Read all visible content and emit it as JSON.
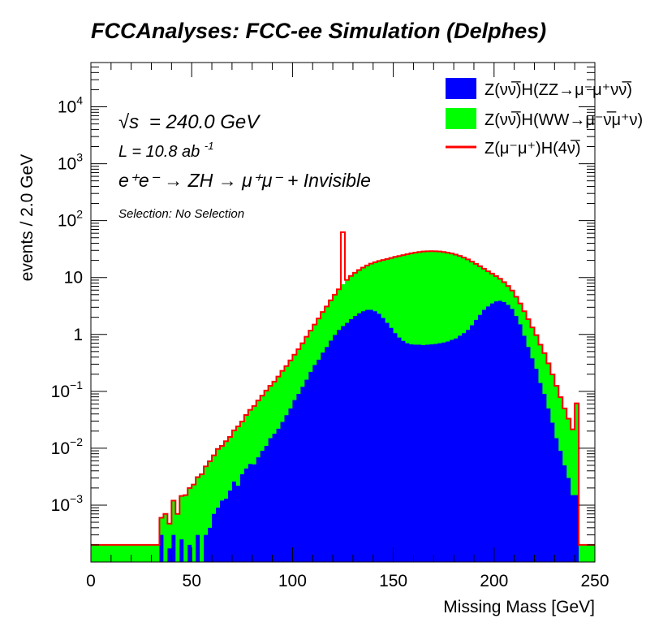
{
  "chart_data": {
    "type": "area",
    "title": "FCCAnalyses: FCC-ee Simulation (Delphes)",
    "xlabel": "Missing Mass [GeV]",
    "ylabel": "events / 2.0 GeV",
    "xlim": [
      0,
      250
    ],
    "ylim": [
      0.0001,
      60000
    ],
    "yscale": "log",
    "bin_width": 2,
    "x_ticks": [
      "0",
      "50",
      "100",
      "150",
      "200",
      "250"
    ],
    "y_ticks": [
      {
        "value": 0.001,
        "mantissa": "10",
        "exp": "−3"
      },
      {
        "value": 0.01,
        "mantissa": "10",
        "exp": "−2"
      },
      {
        "value": 0.1,
        "mantissa": "10",
        "exp": "−1"
      },
      {
        "value": 1,
        "mantissa": "1",
        "exp": ""
      },
      {
        "value": 10,
        "mantissa": "10",
        "exp": ""
      },
      {
        "value": 100,
        "mantissa": "10",
        "exp": "2"
      },
      {
        "value": 1000,
        "mantissa": "10",
        "exp": "3"
      },
      {
        "value": 10000,
        "mantissa": "10",
        "exp": "4"
      }
    ],
    "grid": false,
    "legend_position": "top-right",
    "annotations": {
      "sqrt_s_symbol": "√s",
      "sqrt_s_value": "= 240.0 GeV",
      "lumi_text": "L = 10.8 ab",
      "lumi_exp": "-1",
      "process_text": "e⁺e⁻ → ZH → μ⁺μ⁻ + Invisible",
      "selection_text": "Selection: No Selection"
    },
    "series": [
      {
        "name": "Z(νν̅)H(ZZ→μ⁻μ⁺νν̅)",
        "color": "#0000ff",
        "style": "stacked-fill",
        "points": [
          [
            30,
            0.0001
          ],
          [
            33,
            0.0001
          ],
          [
            34,
            0.0003
          ],
          [
            36,
            0.0001
          ],
          [
            40,
            0.0003
          ],
          [
            42,
            0.0001
          ],
          [
            44,
            0.00025
          ],
          [
            46,
            0.0001
          ],
          [
            48,
            0.0002
          ],
          [
            50,
            0.0001
          ],
          [
            52,
            0.0003
          ],
          [
            54,
            0.0001
          ],
          [
            56,
            0.0003
          ],
          [
            58,
            0.0004
          ],
          [
            60,
            0.0007
          ],
          [
            62,
            0.0009
          ],
          [
            64,
            0.0012
          ],
          [
            66,
            0.0013
          ],
          [
            68,
            0.0018
          ],
          [
            70,
            0.0026
          ],
          [
            72,
            0.0022
          ],
          [
            74,
            0.0035
          ],
          [
            76,
            0.0044
          ],
          [
            78,
            0.0053
          ],
          [
            80,
            0.0052
          ],
          [
            82,
            0.0069
          ],
          [
            84,
            0.009
          ],
          [
            86,
            0.011
          ],
          [
            88,
            0.015
          ],
          [
            90,
            0.018
          ],
          [
            92,
            0.022
          ],
          [
            94,
            0.029
          ],
          [
            96,
            0.038
          ],
          [
            98,
            0.05
          ],
          [
            100,
            0.07
          ],
          [
            102,
            0.09
          ],
          [
            104,
            0.12
          ],
          [
            106,
            0.16
          ],
          [
            108,
            0.22
          ],
          [
            110,
            0.29
          ],
          [
            112,
            0.36
          ],
          [
            114,
            0.48
          ],
          [
            116,
            0.6
          ],
          [
            118,
            0.78
          ],
          [
            120,
            0.98
          ],
          [
            122,
            1.2
          ],
          [
            124,
            1.4
          ],
          [
            126,
            1.6
          ],
          [
            128,
            1.85
          ],
          [
            130,
            2.1
          ],
          [
            132,
            2.35
          ],
          [
            134,
            2.55
          ],
          [
            136,
            2.7
          ],
          [
            138,
            2.7
          ],
          [
            140,
            2.55
          ],
          [
            142,
            2.3
          ],
          [
            144,
            1.95
          ],
          [
            146,
            1.6
          ],
          [
            148,
            1.3
          ],
          [
            150,
            1.05
          ],
          [
            152,
            0.88
          ],
          [
            154,
            0.77
          ],
          [
            156,
            0.7
          ],
          [
            158,
            0.67
          ],
          [
            160,
            0.66
          ],
          [
            162,
            0.66
          ],
          [
            164,
            0.65
          ],
          [
            166,
            0.66
          ],
          [
            168,
            0.67
          ],
          [
            170,
            0.68
          ],
          [
            172,
            0.7
          ],
          [
            174,
            0.72
          ],
          [
            176,
            0.75
          ],
          [
            178,
            0.8
          ],
          [
            180,
            0.85
          ],
          [
            182,
            0.95
          ],
          [
            184,
            1.05
          ],
          [
            186,
            1.2
          ],
          [
            188,
            1.45
          ],
          [
            190,
            1.8
          ],
          [
            192,
            2.2
          ],
          [
            194,
            2.7
          ],
          [
            196,
            3.1
          ],
          [
            198,
            3.5
          ],
          [
            200,
            3.8
          ],
          [
            202,
            3.9
          ],
          [
            204,
            3.7
          ],
          [
            206,
            3.3
          ],
          [
            208,
            2.8
          ],
          [
            210,
            2.1
          ],
          [
            212,
            1.5
          ],
          [
            214,
            0.95
          ],
          [
            216,
            0.6
          ],
          [
            218,
            0.38
          ],
          [
            220,
            0.25
          ],
          [
            222,
            0.14
          ],
          [
            224,
            0.09
          ],
          [
            226,
            0.05
          ],
          [
            228,
            0.028
          ],
          [
            230,
            0.015
          ],
          [
            232,
            0.009
          ],
          [
            234,
            0.005
          ],
          [
            236,
            0.003
          ],
          [
            238,
            0.0015
          ],
          [
            240,
            0.0015
          ],
          [
            242,
            0.0001
          ],
          [
            250,
            0.0001
          ]
        ]
      },
      {
        "name": "Z(νν̅)H(WW→μ⁻ν̅μ⁺ν)",
        "color": "#00ff00",
        "style": "stacked-fill",
        "points": [
          [
            30,
            0.0001
          ],
          [
            32,
            0.0001
          ],
          [
            34,
            0.0003
          ],
          [
            36,
            0.0006
          ],
          [
            38,
            0.0003
          ],
          [
            40,
            0.0009
          ],
          [
            42,
            0.0006
          ],
          [
            44,
            0.0012
          ],
          [
            46,
            0.0014
          ],
          [
            48,
            0.0018
          ],
          [
            50,
            0.0022
          ],
          [
            52,
            0.0028
          ],
          [
            54,
            0.0034
          ],
          [
            56,
            0.0045
          ],
          [
            58,
            0.0055
          ],
          [
            60,
            0.0068
          ],
          [
            62,
            0.0088
          ],
          [
            64,
            0.0098
          ],
          [
            66,
            0.012
          ],
          [
            68,
            0.014
          ],
          [
            70,
            0.018
          ],
          [
            72,
            0.022
          ],
          [
            74,
            0.026
          ],
          [
            76,
            0.034
          ],
          [
            78,
            0.042
          ],
          [
            80,
            0.05
          ],
          [
            82,
            0.062
          ],
          [
            84,
            0.075
          ],
          [
            86,
            0.092
          ],
          [
            88,
            0.11
          ],
          [
            90,
            0.13
          ],
          [
            92,
            0.16
          ],
          [
            94,
            0.2
          ],
          [
            96,
            0.24
          ],
          [
            98,
            0.3
          ],
          [
            100,
            0.37
          ],
          [
            102,
            0.46
          ],
          [
            104,
            0.58
          ],
          [
            106,
            0.75
          ],
          [
            108,
            0.95
          ],
          [
            110,
            1.2
          ],
          [
            112,
            1.55
          ],
          [
            114,
            2.0
          ],
          [
            116,
            2.5
          ],
          [
            118,
            3.2
          ],
          [
            120,
            4.0
          ],
          [
            122,
            5.0
          ],
          [
            124,
            6.2
          ],
          [
            126,
            7.5
          ],
          [
            128,
            8.8
          ],
          [
            130,
            10
          ],
          [
            132,
            11.2
          ],
          [
            134,
            12.4
          ],
          [
            136,
            13.6
          ],
          [
            138,
            14.8
          ],
          [
            140,
            16
          ],
          [
            142,
            17.2
          ],
          [
            144,
            18.4
          ],
          [
            146,
            19.6
          ],
          [
            148,
            20.8
          ],
          [
            150,
            22
          ],
          [
            152,
            23
          ],
          [
            154,
            24
          ],
          [
            156,
            25
          ],
          [
            158,
            26
          ],
          [
            160,
            26.8
          ],
          [
            162,
            27.5
          ],
          [
            164,
            28
          ],
          [
            166,
            28.3
          ],
          [
            168,
            28.4
          ],
          [
            170,
            28.3
          ],
          [
            172,
            28
          ],
          [
            174,
            27.4
          ],
          [
            176,
            26.6
          ],
          [
            178,
            25.6
          ],
          [
            180,
            24.4
          ],
          [
            182,
            23
          ],
          [
            184,
            21.4
          ],
          [
            186,
            19.6
          ],
          [
            188,
            17.6
          ],
          [
            190,
            15.6
          ],
          [
            192,
            13.6
          ],
          [
            194,
            11.6
          ],
          [
            196,
            9.8
          ],
          [
            198,
            8.2
          ],
          [
            200,
            6.8
          ],
          [
            202,
            5.6
          ],
          [
            204,
            4.6
          ],
          [
            206,
            3.8
          ],
          [
            208,
            3.1
          ],
          [
            210,
            2.5
          ],
          [
            212,
            2.0
          ],
          [
            214,
            1.6
          ],
          [
            216,
            1.25
          ],
          [
            218,
            0.95
          ],
          [
            220,
            0.72
          ],
          [
            222,
            0.52
          ],
          [
            224,
            0.38
          ],
          [
            226,
            0.26
          ],
          [
            228,
            0.17
          ],
          [
            230,
            0.11
          ],
          [
            232,
            0.07
          ],
          [
            234,
            0.045
          ],
          [
            236,
            0.03
          ],
          [
            238,
            0.02
          ],
          [
            240,
            0.06
          ],
          [
            242,
            0.0001
          ],
          [
            250,
            0.0001
          ]
        ]
      },
      {
        "name": "Z(μ⁻μ⁺)H(4ν̅)",
        "color": "#ff0000",
        "style": "line",
        "points": [
          [
            124,
            55
          ],
          [
            126,
            0
          ]
        ]
      }
    ]
  }
}
